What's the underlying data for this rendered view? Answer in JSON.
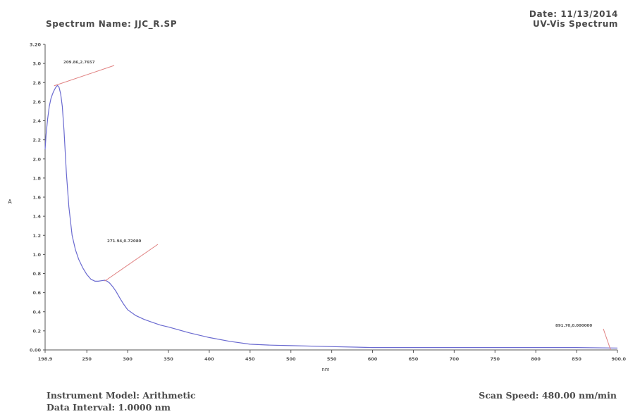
{
  "header": {
    "spectrum_name": "Spectrum Name: JJC_R.SP",
    "date": "Date: 11/13/2014",
    "spectrum_type": "UV-Vis Spectrum"
  },
  "footer": {
    "instrument_model": "Instrument Model: Arithmetic",
    "data_interval": "Data Interval: 1.0000 nm",
    "scan_speed": "Scan Speed: 480.00 nm/min"
  },
  "chart_data": {
    "type": "line",
    "title": "",
    "xlabel": "nm",
    "ylabel": "A",
    "xlim": [
      198.9,
      900.0
    ],
    "ylim": [
      0.0,
      3.2
    ],
    "x_ticks": [
      "198.9",
      "250",
      "300",
      "350",
      "400",
      "450",
      "500",
      "550",
      "600",
      "650",
      "700",
      "750",
      "800",
      "850",
      "900.0"
    ],
    "x_tick_values": [
      198.9,
      250,
      300,
      350,
      400,
      450,
      500,
      550,
      600,
      650,
      700,
      750,
      800,
      850,
      900
    ],
    "y_ticks": [
      "0.00",
      "0.2",
      "0.4",
      "0.6",
      "0.8",
      "1.0",
      "1.2",
      "1.4",
      "1.6",
      "1.8",
      "2.0",
      "2.2",
      "2.4",
      "2.6",
      "2.8",
      "3.0",
      "3.20"
    ],
    "y_tick_values": [
      0,
      0.2,
      0.4,
      0.6,
      0.8,
      1.0,
      1.2,
      1.4,
      1.6,
      1.8,
      2.0,
      2.2,
      2.4,
      2.6,
      2.8,
      3.0,
      3.2
    ],
    "grid": false,
    "line_color": "#6a6ad0",
    "annotation_color": "#e08080",
    "series": [
      {
        "x": [
          198.9,
          200,
          202,
          204,
          206,
          208,
          210,
          212,
          214,
          216,
          218,
          220,
          222,
          225,
          228,
          232,
          236,
          240,
          245,
          250,
          255,
          260,
          264,
          268,
          272,
          275,
          278,
          282,
          286,
          290,
          295,
          300,
          310,
          320,
          330,
          340,
          350,
          375,
          400,
          425,
          450,
          475,
          500,
          550,
          600,
          650,
          700,
          750,
          800,
          850,
          900
        ],
        "y": [
          2.1,
          2.25,
          2.42,
          2.55,
          2.63,
          2.68,
          2.72,
          2.75,
          2.77,
          2.75,
          2.68,
          2.55,
          2.3,
          1.85,
          1.5,
          1.2,
          1.05,
          0.95,
          0.86,
          0.79,
          0.74,
          0.72,
          0.72,
          0.725,
          0.73,
          0.72,
          0.7,
          0.66,
          0.61,
          0.55,
          0.48,
          0.42,
          0.36,
          0.32,
          0.29,
          0.26,
          0.24,
          0.18,
          0.13,
          0.09,
          0.06,
          0.05,
          0.045,
          0.035,
          0.025,
          0.025,
          0.025,
          0.025,
          0.025,
          0.025,
          0.02
        ]
      }
    ],
    "annotations": [
      {
        "text": "209.86,2.7657",
        "x": 209.86,
        "y": 2.7657
      },
      {
        "text": "271.94,0.72080",
        "x": 271.94,
        "y": 0.7208
      },
      {
        "text": "891.70,0.000000",
        "x": 891.7,
        "y": 0.0
      }
    ]
  }
}
